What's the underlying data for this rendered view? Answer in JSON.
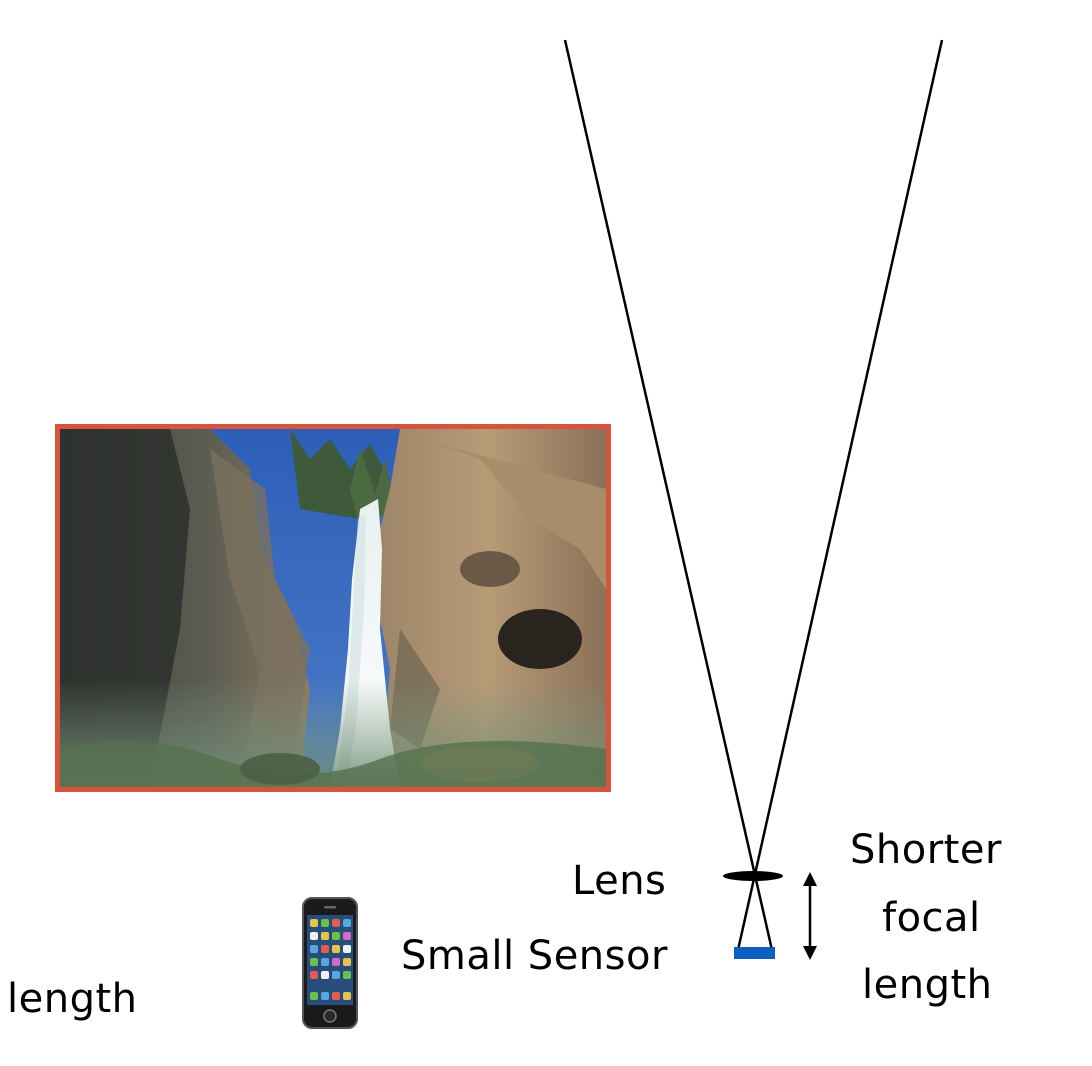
{
  "labels": {
    "left_caption": "length",
    "lens": "Lens",
    "sensor": "Small Sensor",
    "focal_line1": "Shorter",
    "focal_line2": "focal",
    "focal_line3": "length"
  },
  "colors": {
    "sensor": "#0a5fc0",
    "photo_border": "#d9533c",
    "ray": "#000000"
  },
  "icons": {
    "phone": "smartphone-icon",
    "photo": "waterfall-photo"
  }
}
